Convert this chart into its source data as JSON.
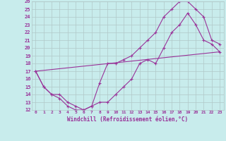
{
  "xlabel": "Windchill (Refroidissement éolien,°C)",
  "bg_color": "#c8ecec",
  "grid_color": "#b0c8c8",
  "line_color": "#993399",
  "xlim": [
    -0.5,
    23.5
  ],
  "ylim": [
    12,
    26
  ],
  "xticks": [
    0,
    1,
    2,
    3,
    4,
    5,
    6,
    7,
    8,
    9,
    10,
    11,
    12,
    13,
    14,
    15,
    16,
    17,
    18,
    19,
    20,
    21,
    22,
    23
  ],
  "yticks": [
    12,
    13,
    14,
    15,
    16,
    17,
    18,
    19,
    20,
    21,
    22,
    23,
    24,
    25,
    26
  ],
  "line1_x": [
    0,
    1,
    2,
    3,
    4,
    5,
    6,
    7,
    8,
    9,
    10,
    11,
    12,
    13,
    14,
    15,
    16,
    17,
    18,
    19,
    20,
    21,
    22,
    23
  ],
  "line1_y": [
    17,
    15,
    14,
    13.5,
    12.5,
    12,
    12,
    12.5,
    15.5,
    18,
    18,
    18.5,
    19,
    20,
    21,
    22,
    24,
    25,
    26,
    26,
    25,
    24,
    21,
    20.5
  ],
  "line2_x": [
    0,
    1,
    2,
    3,
    4,
    5,
    6,
    7,
    8,
    9,
    10,
    11,
    12,
    13,
    14,
    15,
    16,
    17,
    18,
    19,
    20,
    21,
    22,
    23
  ],
  "line2_y": [
    17,
    15,
    14,
    14,
    13,
    12.5,
    12,
    12.5,
    13,
    13,
    14,
    15,
    16,
    18,
    18.5,
    18,
    20,
    22,
    23,
    24.5,
    23,
    21,
    20.5,
    19.5
  ],
  "line3_x": [
    0,
    23
  ],
  "line3_y": [
    17,
    19.5
  ]
}
